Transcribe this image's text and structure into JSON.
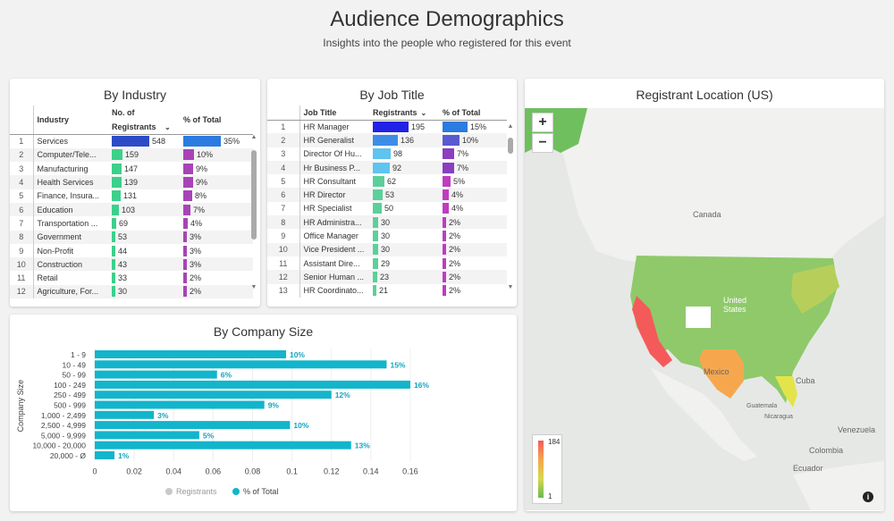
{
  "header": {
    "title": "Audience Demographics",
    "subtitle": "Insights into the people who registered for this event"
  },
  "colors": {
    "accent_blue": "#1f6ad8",
    "purple": "#a843b7",
    "green": "#2ec77a",
    "teal": "#12b5cb"
  },
  "industry": {
    "title": "By Industry",
    "columns": [
      "Industry",
      "No. of Registrants",
      "% of Total"
    ],
    "rows": [
      {
        "n": "1",
        "name": "Services",
        "count": "548",
        "pct": "35%"
      },
      {
        "n": "2",
        "name": "Computer/Tele...",
        "count": "159",
        "pct": "10%"
      },
      {
        "n": "3",
        "name": "Manufacturing",
        "count": "147",
        "pct": "9%"
      },
      {
        "n": "4",
        "name": "Health Services",
        "count": "139",
        "pct": "9%"
      },
      {
        "n": "5",
        "name": "Finance, Insura...",
        "count": "131",
        "pct": "8%"
      },
      {
        "n": "6",
        "name": "Education",
        "count": "103",
        "pct": "7%"
      },
      {
        "n": "7",
        "name": "Transportation ...",
        "count": "69",
        "pct": "4%"
      },
      {
        "n": "8",
        "name": "Government",
        "count": "53",
        "pct": "3%"
      },
      {
        "n": "9",
        "name": "Non-Profit",
        "count": "44",
        "pct": "3%"
      },
      {
        "n": "10",
        "name": "Construction",
        "count": "43",
        "pct": "3%"
      },
      {
        "n": "11",
        "name": "Retail",
        "count": "33",
        "pct": "2%"
      },
      {
        "n": "12",
        "name": "Agriculture, For...",
        "count": "30",
        "pct": "2%"
      }
    ]
  },
  "jobtitle": {
    "title": "By Job Title",
    "columns": [
      "Job Title",
      "Registrants",
      "% of Total"
    ],
    "rows": [
      {
        "n": "1",
        "name": "HR Manager",
        "count": "195",
        "pct": "15%"
      },
      {
        "n": "2",
        "name": "HR Generalist",
        "count": "136",
        "pct": "10%"
      },
      {
        "n": "3",
        "name": "Director Of Hu...",
        "count": "98",
        "pct": "7%"
      },
      {
        "n": "4",
        "name": "Hr Business P...",
        "count": "92",
        "pct": "7%"
      },
      {
        "n": "5",
        "name": "HR Consultant",
        "count": "62",
        "pct": "5%"
      },
      {
        "n": "6",
        "name": "HR Director",
        "count": "53",
        "pct": "4%"
      },
      {
        "n": "7",
        "name": "HR Specialist",
        "count": "50",
        "pct": "4%"
      },
      {
        "n": "8",
        "name": "HR Administra...",
        "count": "30",
        "pct": "2%"
      },
      {
        "n": "9",
        "name": "Office Manager",
        "count": "30",
        "pct": "2%"
      },
      {
        "n": "10",
        "name": "Vice President ...",
        "count": "30",
        "pct": "2%"
      },
      {
        "n": "11",
        "name": "Assistant Dire...",
        "count": "29",
        "pct": "2%"
      },
      {
        "n": "12",
        "name": "Senior Human ...",
        "count": "23",
        "pct": "2%"
      },
      {
        "n": "13",
        "name": "HR Coordinato...",
        "count": "21",
        "pct": "2%"
      }
    ]
  },
  "map": {
    "title": "Registrant Location (US)",
    "zoom_in": "+",
    "zoom_out": "−",
    "legend_max": "184",
    "legend_min": "1",
    "labels": [
      "Canada",
      "United States",
      "Mexico",
      "Cuba",
      "Guatemala",
      "Nicaragua",
      "Venezuela",
      "Colombia",
      "Ecuador"
    ],
    "info": "i"
  },
  "chart_data": {
    "type": "bar",
    "title": "By Company Size",
    "ylabel": "Company Size",
    "categories": [
      "1 - 9",
      "10 - 49",
      "50 - 99",
      "100 - 249",
      "250 - 499",
      "500 - 999",
      "1,000 - 2,499",
      "2,500 - 4,999",
      "5,000 - 9,999",
      "10,000 - 20,000",
      "20,000 - Ø"
    ],
    "values": [
      0.097,
      0.148,
      0.062,
      0.16,
      0.12,
      0.086,
      0.03,
      0.099,
      0.053,
      0.13,
      0.01
    ],
    "labels": [
      "10%",
      "15%",
      "6%",
      "16%",
      "12%",
      "9%",
      "3%",
      "10%",
      "5%",
      "13%",
      "1%"
    ],
    "xlim": [
      0,
      0.17
    ],
    "xticks": [
      "0",
      "0.02",
      "0.04",
      "0.06",
      "0.08",
      "0.1",
      "0.12",
      "0.14",
      "0.16"
    ],
    "xtick_values": [
      0,
      0.02,
      0.04,
      0.06,
      0.08,
      0.1,
      0.12,
      0.14,
      0.16
    ],
    "legend": [
      "Registrants",
      "% of Total"
    ],
    "legend_colors": [
      "#c9c9c9",
      "#12b5cb"
    ]
  }
}
